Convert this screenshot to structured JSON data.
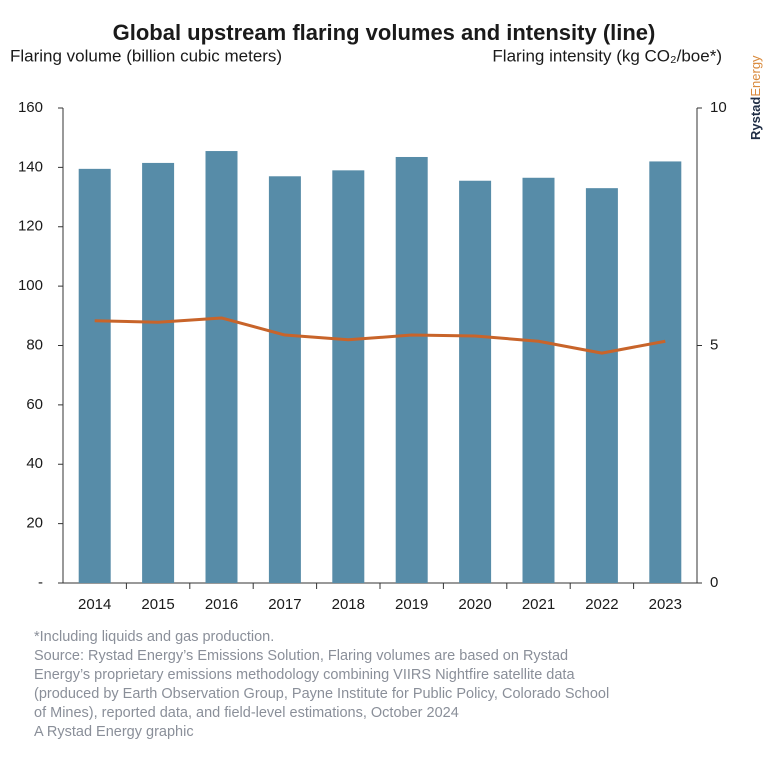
{
  "chart_data": {
    "type": "bar",
    "title": "Global upstream flaring volumes and intensity (line)",
    "y_axis_label": "Flaring volume (billion cubic meters)",
    "y2_axis_label": "Flaring intensity (kg CO₂/boe*)",
    "categories": [
      "2014",
      "2015",
      "2016",
      "2017",
      "2018",
      "2019",
      "2020",
      "2021",
      "2022",
      "2023"
    ],
    "series": [
      {
        "name": "Flaring volume",
        "type": "bar",
        "color": "#578ca8",
        "values": [
          139.5,
          141.5,
          145.5,
          137,
          139,
          143.5,
          135.5,
          136.5,
          133,
          142
        ]
      },
      {
        "name": "Flaring intensity",
        "type": "line",
        "axis": "y2",
        "color": "#c8642a",
        "values": [
          5.52,
          5.49,
          5.58,
          5.22,
          5.12,
          5.22,
          5.2,
          5.09,
          4.84,
          5.09
        ]
      }
    ],
    "ylim": [
      0,
      160
    ],
    "yticks": [
      {
        "value": 0,
        "label": "-"
      },
      20,
      40,
      60,
      80,
      100,
      120,
      140,
      160
    ],
    "y2lim": [
      0,
      10
    ],
    "y2ticks": [
      0,
      5,
      10
    ],
    "grid": false,
    "notes": [
      "*Including liquids and gas production.",
      "Source: Rystad Energy’s Emissions Solution, Flaring volumes are based on Rystad",
      "Energy’s proprietary emissions methodology combining VIIRS Nightfire satellite data",
      "(produced by Earth Observation Group, Payne Institute for Public Policy, Colorado School",
      "of Mines), reported data, and field-level estimations, October 2024",
      "A Rystad Energy graphic"
    ],
    "brand": [
      "Rystad",
      "Energy"
    ]
  }
}
